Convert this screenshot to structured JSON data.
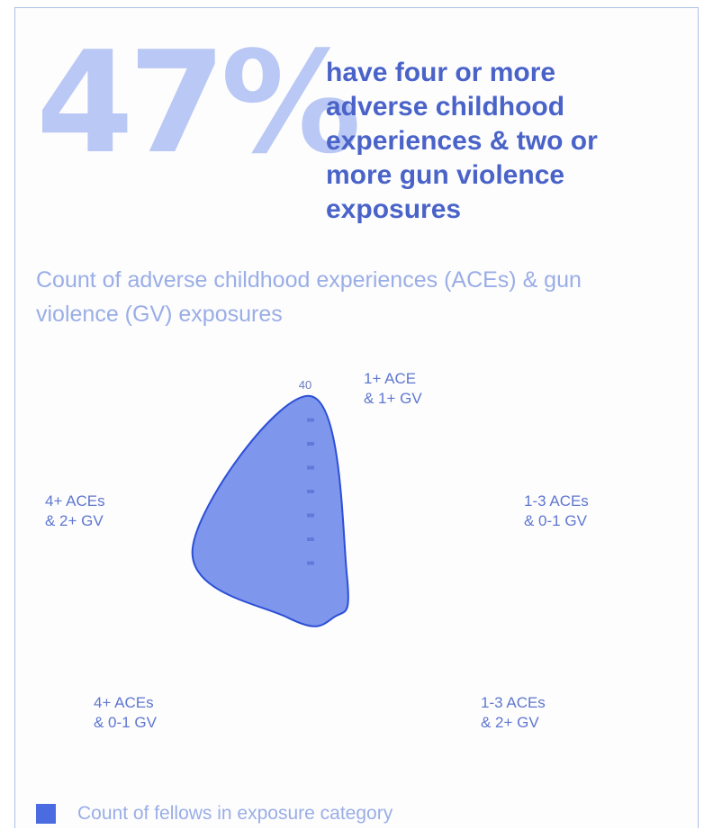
{
  "headline": {
    "stat": "47%",
    "description": "have four or more adverse childhood experiences & two or more gun violence exposures"
  },
  "chart_data": {
    "type": "radar",
    "title": "Count of adverse childhood experiences (ACEs) & gun violence (GV) exposures",
    "axes": [
      {
        "label_lines": [
          "1+ ACE",
          "& 1+ GV"
        ]
      },
      {
        "label_lines": [
          "1-3 ACEs",
          "& 0-1 GV"
        ]
      },
      {
        "label_lines": [
          "1-3 ACEs",
          "& 2+ GV"
        ]
      },
      {
        "label_lines": [
          "4+ ACEs",
          "& 0-1 GV"
        ]
      },
      {
        "label_lines": [
          "4+ ACEs",
          "& 2+ GV"
        ]
      }
    ],
    "scale": {
      "max": 40,
      "tick_step": 5,
      "top_tick_label": "40"
    },
    "series": [
      {
        "values": [
          40,
          8,
          8,
          8,
          26
        ],
        "color": "#7e96ec",
        "outline_color": "#2c4fd6"
      }
    ],
    "legend": {
      "label": "Count of fellows in exposure category",
      "position": "bottom-left"
    },
    "grid": false
  },
  "colors": {
    "stat": "#b9c8f4",
    "headline_text": "#4a63c8",
    "subtitle": "#9aaee6",
    "axis_labels": "#5f77cf",
    "legend_swatch": "#4a6ce0"
  }
}
